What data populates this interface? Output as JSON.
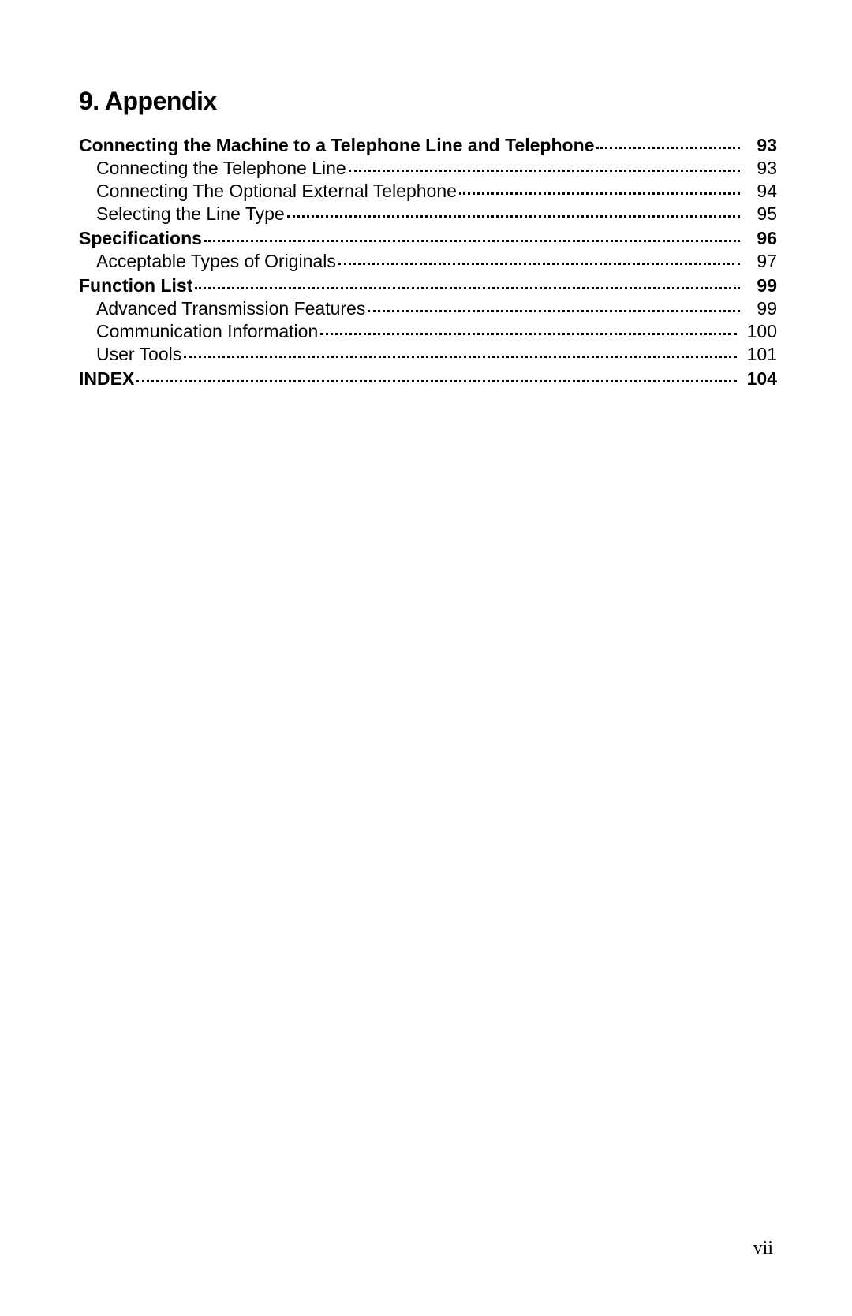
{
  "heading": "9. Appendix",
  "pageNumber": "vii",
  "toc": [
    {
      "title": "Connecting the Machine to a Telephone Line and Telephone",
      "page": "93",
      "bold": true
    },
    {
      "title": "Connecting the Telephone Line",
      "page": "93",
      "bold": false
    },
    {
      "title": "Connecting The Optional External Telephone",
      "page": "94",
      "bold": false
    },
    {
      "title": "Selecting the Line Type",
      "page": "95",
      "bold": false
    },
    {
      "title": "Specifications",
      "page": "96",
      "bold": true
    },
    {
      "title": "Acceptable Types of Originals",
      "page": "97",
      "bold": false
    },
    {
      "title": "Function List",
      "page": "99",
      "bold": true
    },
    {
      "title": "Advanced Transmission Features",
      "page": "99",
      "bold": false
    },
    {
      "title": "Communication Information",
      "page": "100",
      "bold": false
    },
    {
      "title": "User Tools",
      "page": "101",
      "bold": false
    },
    {
      "title": "INDEX",
      "page": "104",
      "bold": true
    }
  ]
}
